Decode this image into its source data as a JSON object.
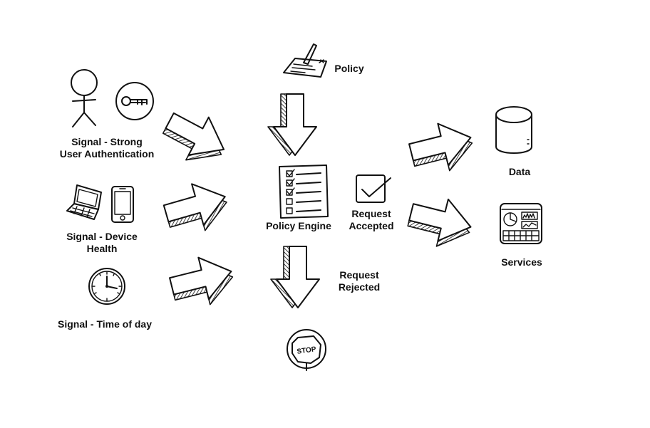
{
  "labels": {
    "policy": "Policy",
    "signal_auth": "Signal -  Strong\nUser Authentication",
    "signal_device": "Signal - Device\nHealth",
    "signal_time": "Signal - Time of day",
    "policy_engine": "Policy Engine",
    "request_accepted": "Request\nAccepted",
    "request_rejected": "Request\nRejected",
    "data": "Data",
    "services": "Services"
  },
  "icons": {
    "policy": "signed-document-icon",
    "user": "person-icon",
    "key": "key-icon",
    "laptop": "laptop-icon",
    "phone": "smartphone-icon",
    "clock": "clock-icon",
    "checklist": "checklist-icon",
    "accepted": "checkmark-icon",
    "stop": "stop-sign-icon",
    "data": "database-icon",
    "services": "dashboard-icon"
  },
  "stop_sign_text": "STOP"
}
